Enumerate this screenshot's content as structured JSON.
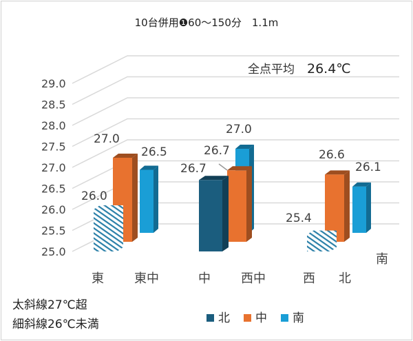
{
  "chart_data": {
    "type": "bar",
    "title": "10台併用❶60～150分　1.1m",
    "annotation": {
      "label": "全点平均",
      "value": "26.4℃"
    },
    "categories": [
      "東",
      "中",
      "西"
    ],
    "axis_labels": [
      "東",
      "東中",
      "中",
      "西中",
      "西",
      "北",
      "南"
    ],
    "yticks": [
      "25.0",
      "25.5",
      "26.0",
      "26.5",
      "27.0",
      "27.5",
      "28.0",
      "28.5",
      "29.0"
    ],
    "ylim": [
      25.0,
      29.0
    ],
    "grid": true,
    "legend_position": "bottom",
    "series": [
      {
        "name": "北",
        "color": "#1b5d7e",
        "values": [
          26.0,
          26.7,
          25.4
        ],
        "labels": [
          "26.0",
          "26.7",
          "25.4"
        ],
        "hatched": [
          true,
          false,
          true
        ]
      },
      {
        "name": "中",
        "color": "#e8722f",
        "values": [
          27.0,
          26.7,
          26.6
        ],
        "labels": [
          "27.0",
          "26.7",
          "26.6"
        ]
      },
      {
        "name": "南",
        "color": "#1a9ed6",
        "values": [
          26.5,
          27.0,
          26.1
        ],
        "labels": [
          "26.5",
          "27.0",
          "26.1"
        ]
      }
    ],
    "notes": [
      "太斜線27℃超",
      "細斜線26℃未満"
    ]
  }
}
